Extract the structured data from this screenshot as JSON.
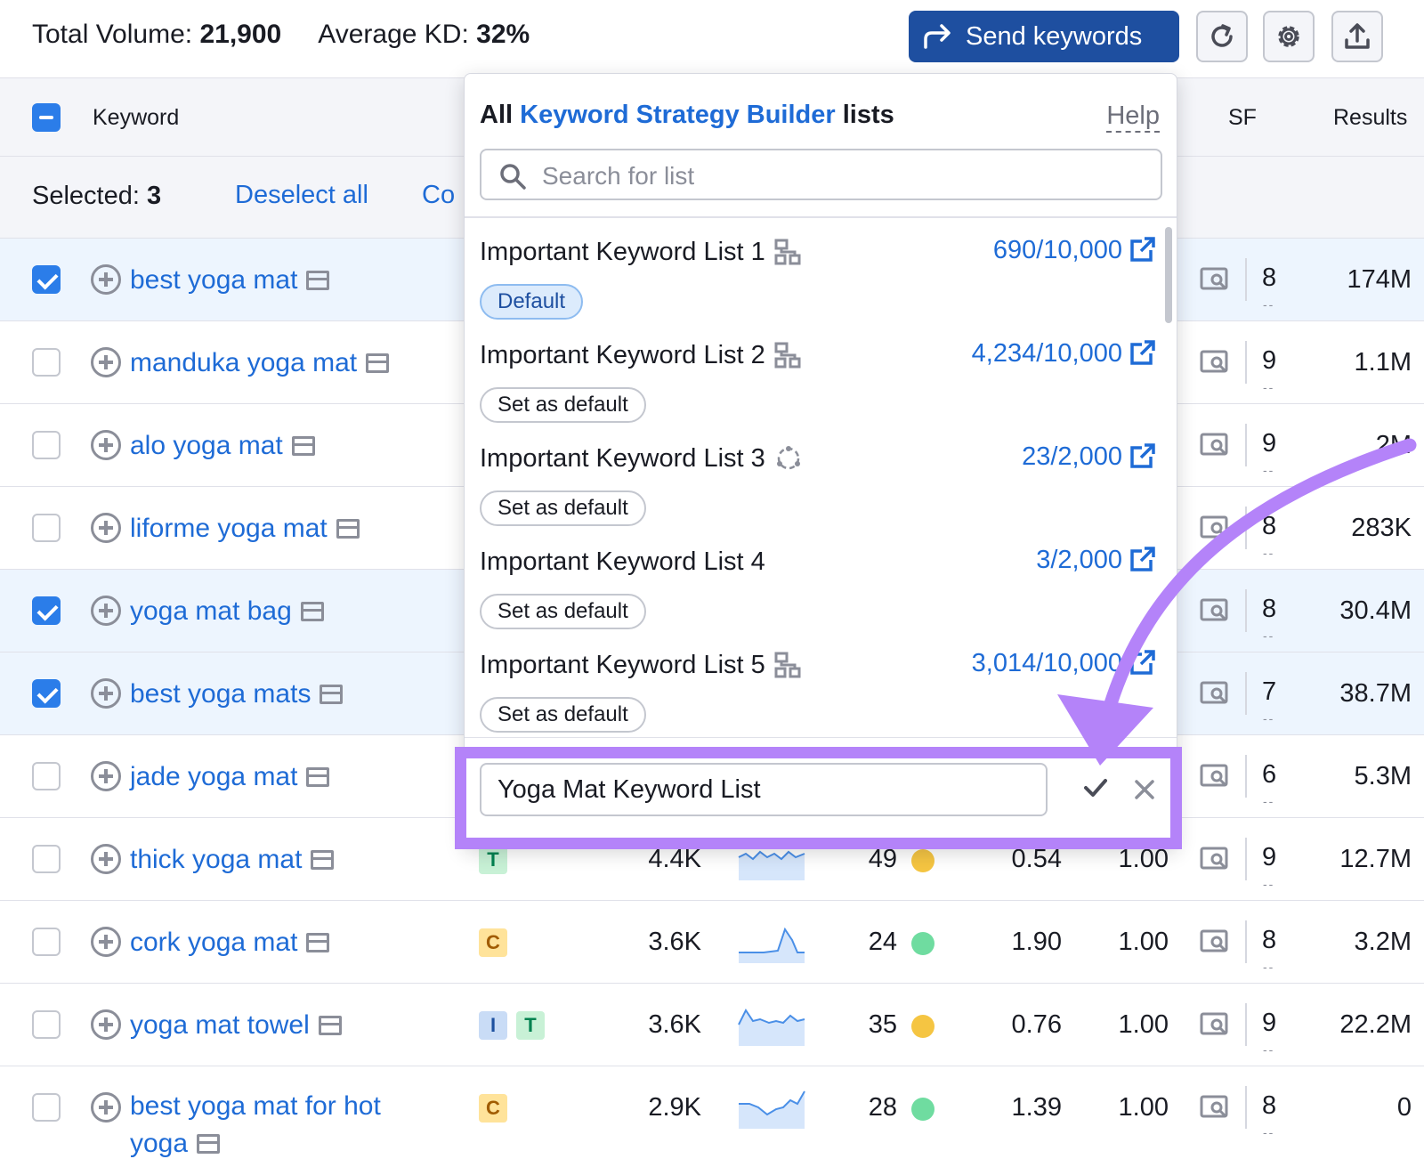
{
  "summary": {
    "total_volume_label": "Total Volume:",
    "total_volume_value": "21,900",
    "avg_kd_label": "Average KD:",
    "avg_kd_value": "32%"
  },
  "toolbar": {
    "send_label": "Send keywords",
    "refresh_icon": "refresh-icon",
    "settings_icon": "gear-icon",
    "export_icon": "export-icon"
  },
  "table": {
    "headers": {
      "keyword": "Keyword",
      "sf": "SF",
      "results": "Results"
    },
    "selected_label": "Selected:",
    "selected_count": "3",
    "deselect_all": "Deselect all",
    "copy_partial": "Co",
    "rows": [
      {
        "keyword": "best yoga mat",
        "checked": true,
        "sf": "8",
        "results": "174M"
      },
      {
        "keyword": "manduka yoga mat",
        "checked": false,
        "sf": "9",
        "results": "1.1M"
      },
      {
        "keyword": "alo yoga mat",
        "checked": false,
        "sf": "9",
        "results": "2M"
      },
      {
        "keyword": "liforme yoga mat",
        "checked": false,
        "sf": "8",
        "results": "283K"
      },
      {
        "keyword": "yoga mat bag",
        "checked": true,
        "sf": "8",
        "results": "30.4M"
      },
      {
        "keyword": "best yoga mats",
        "checked": true,
        "sf": "7",
        "results": "38.7M"
      },
      {
        "keyword": "jade yoga mat",
        "checked": false,
        "sf": "6",
        "results": "5.3M"
      },
      {
        "keyword": "thick yoga mat",
        "checked": false,
        "intents": [
          "T"
        ],
        "volume": "4.4K",
        "kd": "49",
        "kd_color": "yellow",
        "cpc": "0.54",
        "com": "1.00",
        "sf": "9",
        "results": "12.7M"
      },
      {
        "keyword": "cork yoga mat",
        "checked": false,
        "intents": [
          "C"
        ],
        "volume": "3.6K",
        "kd": "24",
        "kd_color": "green",
        "cpc": "1.90",
        "com": "1.00",
        "sf": "8",
        "results": "3.2M"
      },
      {
        "keyword": "yoga mat towel",
        "checked": false,
        "intents": [
          "I",
          "T"
        ],
        "volume": "3.6K",
        "kd": "35",
        "kd_color": "yellow",
        "cpc": "0.76",
        "com": "1.00",
        "sf": "9",
        "results": "22.2M"
      },
      {
        "keyword": "best yoga mat for hot yoga",
        "checked": false,
        "intents": [
          "C"
        ],
        "volume": "2.9K",
        "kd": "28",
        "kd_color": "green",
        "cpc": "1.39",
        "com": "1.00",
        "sf": "8",
        "results": "0"
      }
    ]
  },
  "dropdown": {
    "title_pre": "All ",
    "title_accent": "Keyword Strategy Builder",
    "title_post": " lists",
    "help": "Help",
    "search_placeholder": "Search for list",
    "lists": [
      {
        "name": "Important Keyword List 1",
        "icon": "hierarchy-icon",
        "count": "690/10,000",
        "badge": "Default"
      },
      {
        "name": "Important Keyword List 2",
        "icon": "hierarchy-icon",
        "count": "4,234/10,000",
        "badge": "Set as default"
      },
      {
        "name": "Important Keyword List 3",
        "icon": "processing-icon",
        "count": "23/2,000",
        "badge": "Set as default"
      },
      {
        "name": "Important Keyword List 4",
        "icon": "",
        "count": "3/2,000",
        "badge": "Set as default"
      },
      {
        "name": "Important Keyword List 5",
        "icon": "hierarchy-icon",
        "count": "3,014/10,000",
        "badge": "Set as default"
      }
    ],
    "new_list_value": "Yoga Mat Keyword List"
  },
  "colors": {
    "primary": "#1e4fa0",
    "link": "#1e6bd6",
    "annotation": "#b483f9",
    "checkbox": "#2b7de9"
  }
}
